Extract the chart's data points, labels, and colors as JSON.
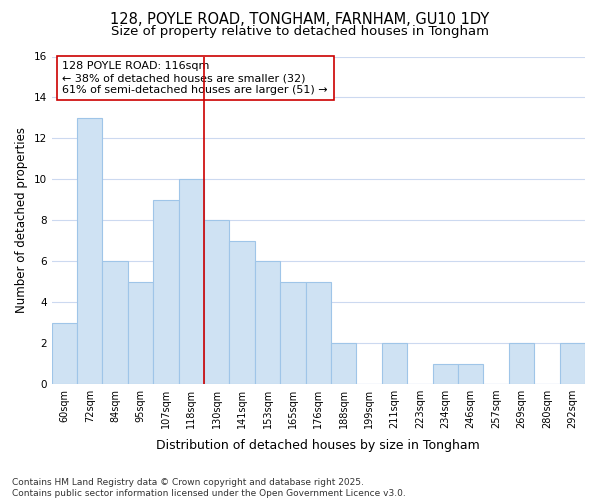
{
  "title1": "128, POYLE ROAD, TONGHAM, FARNHAM, GU10 1DY",
  "title2": "Size of property relative to detached houses in Tongham",
  "xlabel": "Distribution of detached houses by size in Tongham",
  "ylabel": "Number of detached properties",
  "categories": [
    "60sqm",
    "72sqm",
    "84sqm",
    "95sqm",
    "107sqm",
    "118sqm",
    "130sqm",
    "141sqm",
    "153sqm",
    "165sqm",
    "176sqm",
    "188sqm",
    "199sqm",
    "211sqm",
    "223sqm",
    "234sqm",
    "246sqm",
    "257sqm",
    "269sqm",
    "280sqm",
    "292sqm"
  ],
  "values": [
    3,
    13,
    6,
    5,
    9,
    10,
    8,
    7,
    6,
    5,
    5,
    2,
    0,
    2,
    0,
    1,
    1,
    0,
    2,
    0,
    2
  ],
  "bar_color": "#cfe2f3",
  "bar_edge_color": "#9fc5e8",
  "vline_index": 5,
  "vline_color": "#cc0000",
  "annotation_text": "128 POYLE ROAD: 116sqm\n← 38% of detached houses are smaller (32)\n61% of semi-detached houses are larger (51) →",
  "annotation_box_color": "#ffffff",
  "annotation_box_edge_color": "#cc0000",
  "ylim": [
    0,
    16
  ],
  "yticks": [
    0,
    2,
    4,
    6,
    8,
    10,
    12,
    14,
    16
  ],
  "footnote": "Contains HM Land Registry data © Crown copyright and database right 2025.\nContains public sector information licensed under the Open Government Licence v3.0.",
  "fig_bg_color": "#ffffff",
  "plot_bg_color": "#ffffff",
  "grid_color": "#ccd9f0",
  "title_fontsize": 10.5,
  "subtitle_fontsize": 9.5,
  "tick_fontsize": 7,
  "ylabel_fontsize": 8.5,
  "xlabel_fontsize": 9,
  "annotation_fontsize": 8,
  "footnote_fontsize": 6.5
}
